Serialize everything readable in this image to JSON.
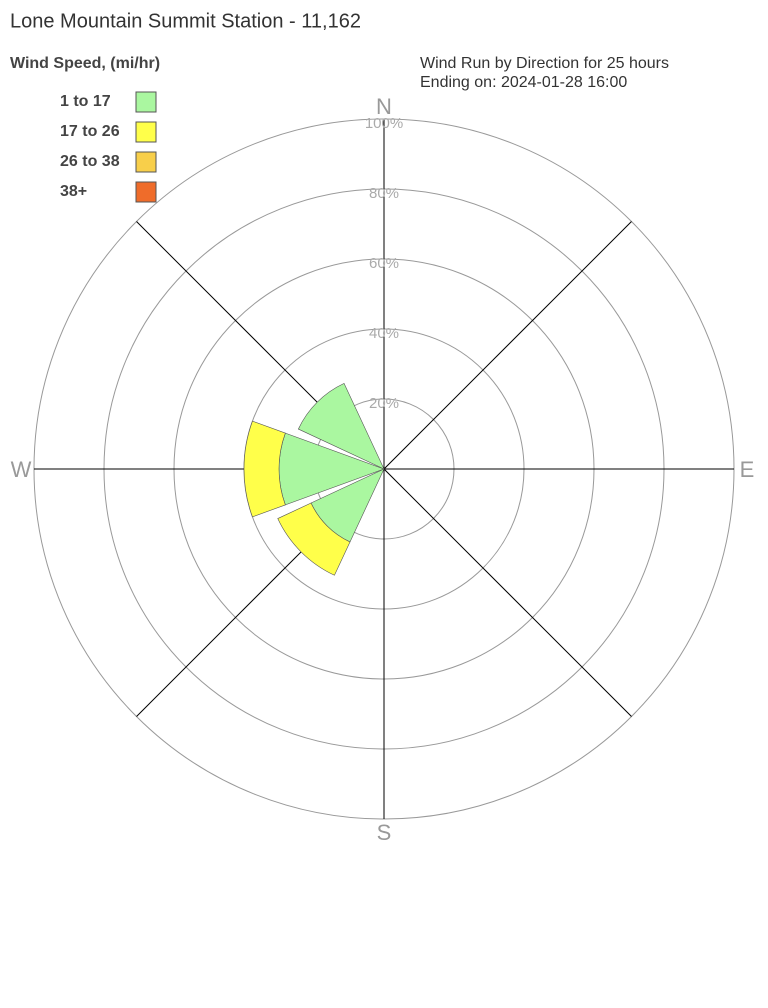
{
  "chart_data": {
    "type": "windrose",
    "title": "Lone Mountain Summit Station - 11,162",
    "legend_title": "Wind Speed, (mi/hr)",
    "subtitle": [
      "Wind Run by Direction for 25 hours",
      "Ending on: 2024-01-28 16:00"
    ],
    "categories": [
      "N",
      null,
      "E",
      null,
      "S",
      null,
      "W",
      null
    ],
    "series": [
      {
        "name": "1 to 17",
        "color": "#aaf7a0",
        "values": [
          0,
          0,
          0,
          0,
          0,
          23,
          30,
          27
        ]
      },
      {
        "name": "17 to 26",
        "color": "#ffff4a",
        "values": [
          0,
          0,
          0,
          0,
          0,
          10.5,
          10,
          0
        ]
      },
      {
        "name": "26 to 38",
        "color": "#f8cf4a",
        "values": [
          0,
          0,
          0,
          0,
          0,
          0,
          0,
          0
        ]
      },
      {
        "name": "38+",
        "color": "#ef6c2a",
        "values": [
          0,
          0,
          0,
          0,
          0,
          0,
          0,
          0
        ]
      }
    ],
    "rlim": [
      0,
      100
    ],
    "rticks": [
      {
        "value": 20,
        "label": "20%"
      },
      {
        "value": 40,
        "label": "40%"
      },
      {
        "value": 60,
        "label": "60%"
      },
      {
        "value": 80,
        "label": "80%"
      },
      {
        "value": 100,
        "label": "100%"
      }
    ]
  }
}
